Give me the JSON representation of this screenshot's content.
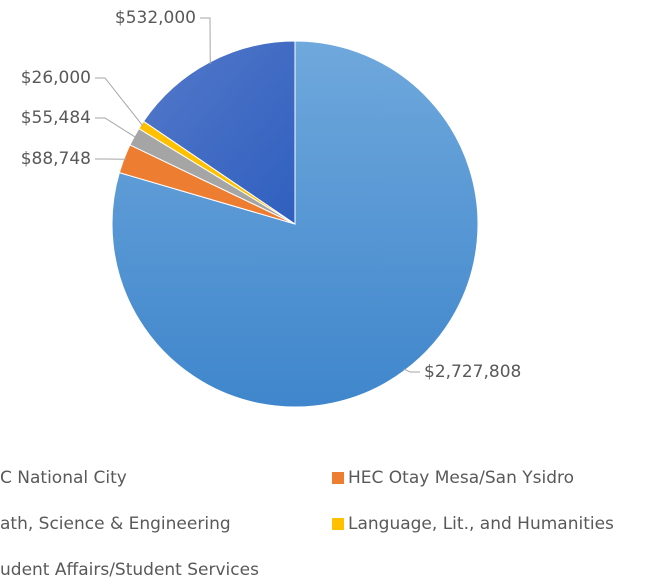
{
  "chart_data": {
    "type": "pie",
    "categories": [
      "C National City",
      "HEC Otay Mesa/San Ysidro",
      "ath, Science & Engineering",
      "Language, Lit., and Humanities",
      "udent Affairs/Student Services"
    ],
    "values": [
      2727808,
      88748,
      55484,
      26000,
      532000
    ],
    "value_labels": [
      "$2,727,808",
      "$88,748",
      "$55,484",
      "$26,000",
      "$532,000"
    ],
    "colors": [
      "#5b9bd5",
      "#ed7d31",
      "#a5a5a5",
      "#ffc000",
      "#4472c4"
    ]
  }
}
